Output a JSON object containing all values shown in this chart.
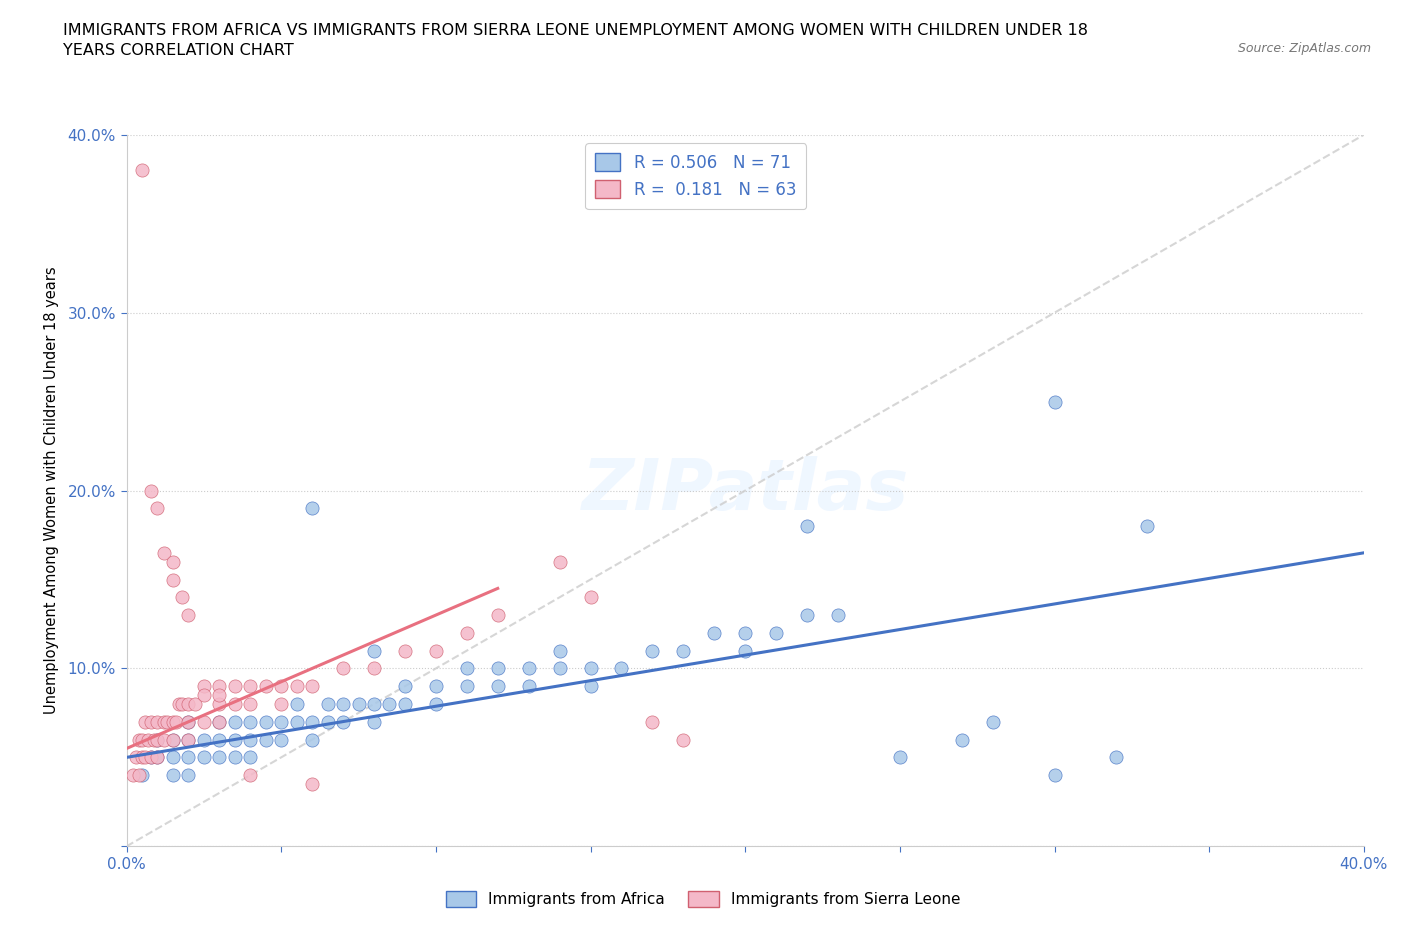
{
  "title": "IMMIGRANTS FROM AFRICA VS IMMIGRANTS FROM SIERRA LEONE UNEMPLOYMENT AMONG WOMEN WITH CHILDREN UNDER 18\nYEARS CORRELATION CHART",
  "source": "Source: ZipAtlas.com",
  "ylabel": "Unemployment Among Women with Children Under 18 years",
  "africa_color": "#a8c8e8",
  "africa_edge_color": "#4472c4",
  "sierra_color": "#f4b8c8",
  "sierra_edge_color": "#d06070",
  "africa_line_color": "#4472c4",
  "sierra_line_color": "#e87080",
  "diag_line_color": "#cccccc",
  "africa_R": 0.506,
  "africa_N": 71,
  "sierra_R": 0.181,
  "sierra_N": 63,
  "xlim": [
    0.0,
    0.4
  ],
  "ylim": [
    0.0,
    0.4
  ],
  "africa_x": [
    0.005,
    0.008,
    0.01,
    0.01,
    0.015,
    0.015,
    0.015,
    0.02,
    0.02,
    0.02,
    0.02,
    0.025,
    0.025,
    0.03,
    0.03,
    0.03,
    0.035,
    0.035,
    0.04,
    0.04,
    0.04,
    0.045,
    0.045,
    0.05,
    0.05,
    0.055,
    0.055,
    0.06,
    0.06,
    0.065,
    0.065,
    0.07,
    0.07,
    0.075,
    0.08,
    0.08,
    0.085,
    0.09,
    0.09,
    0.1,
    0.1,
    0.11,
    0.11,
    0.12,
    0.12,
    0.13,
    0.13,
    0.14,
    0.14,
    0.15,
    0.15,
    0.16,
    0.17,
    0.18,
    0.19,
    0.2,
    0.2,
    0.21,
    0.22,
    0.23,
    0.25,
    0.27,
    0.28,
    0.3,
    0.3,
    0.32,
    0.33,
    0.035,
    0.06,
    0.08,
    0.22
  ],
  "africa_y": [
    0.04,
    0.05,
    0.05,
    0.06,
    0.04,
    0.05,
    0.06,
    0.04,
    0.05,
    0.06,
    0.07,
    0.05,
    0.06,
    0.05,
    0.06,
    0.07,
    0.06,
    0.07,
    0.05,
    0.06,
    0.07,
    0.06,
    0.07,
    0.06,
    0.07,
    0.07,
    0.08,
    0.06,
    0.07,
    0.07,
    0.08,
    0.07,
    0.08,
    0.08,
    0.07,
    0.08,
    0.08,
    0.08,
    0.09,
    0.08,
    0.09,
    0.09,
    0.1,
    0.09,
    0.1,
    0.09,
    0.1,
    0.1,
    0.11,
    0.09,
    0.1,
    0.1,
    0.11,
    0.11,
    0.12,
    0.11,
    0.12,
    0.12,
    0.13,
    0.13,
    0.05,
    0.06,
    0.07,
    0.04,
    0.25,
    0.05,
    0.18,
    0.05,
    0.19,
    0.11,
    0.18
  ],
  "sierra_x": [
    0.002,
    0.003,
    0.004,
    0.004,
    0.005,
    0.005,
    0.006,
    0.006,
    0.007,
    0.008,
    0.008,
    0.009,
    0.01,
    0.01,
    0.01,
    0.012,
    0.012,
    0.013,
    0.015,
    0.015,
    0.016,
    0.017,
    0.018,
    0.02,
    0.02,
    0.02,
    0.022,
    0.025,
    0.025,
    0.03,
    0.03,
    0.03,
    0.035,
    0.035,
    0.04,
    0.04,
    0.045,
    0.05,
    0.05,
    0.055,
    0.06,
    0.07,
    0.08,
    0.09,
    0.1,
    0.11,
    0.12,
    0.14,
    0.15,
    0.17,
    0.18,
    0.005,
    0.008,
    0.01,
    0.012,
    0.015,
    0.015,
    0.018,
    0.02,
    0.025,
    0.03,
    0.04,
    0.06
  ],
  "sierra_y": [
    0.04,
    0.05,
    0.04,
    0.06,
    0.05,
    0.06,
    0.05,
    0.07,
    0.06,
    0.05,
    0.07,
    0.06,
    0.05,
    0.06,
    0.07,
    0.06,
    0.07,
    0.07,
    0.06,
    0.07,
    0.07,
    0.08,
    0.08,
    0.06,
    0.07,
    0.08,
    0.08,
    0.07,
    0.09,
    0.07,
    0.08,
    0.09,
    0.08,
    0.09,
    0.08,
    0.09,
    0.09,
    0.08,
    0.09,
    0.09,
    0.09,
    0.1,
    0.1,
    0.11,
    0.11,
    0.12,
    0.13,
    0.16,
    0.14,
    0.07,
    0.06,
    0.38,
    0.2,
    0.19,
    0.165,
    0.16,
    0.15,
    0.14,
    0.13,
    0.085,
    0.085,
    0.04,
    0.035
  ]
}
